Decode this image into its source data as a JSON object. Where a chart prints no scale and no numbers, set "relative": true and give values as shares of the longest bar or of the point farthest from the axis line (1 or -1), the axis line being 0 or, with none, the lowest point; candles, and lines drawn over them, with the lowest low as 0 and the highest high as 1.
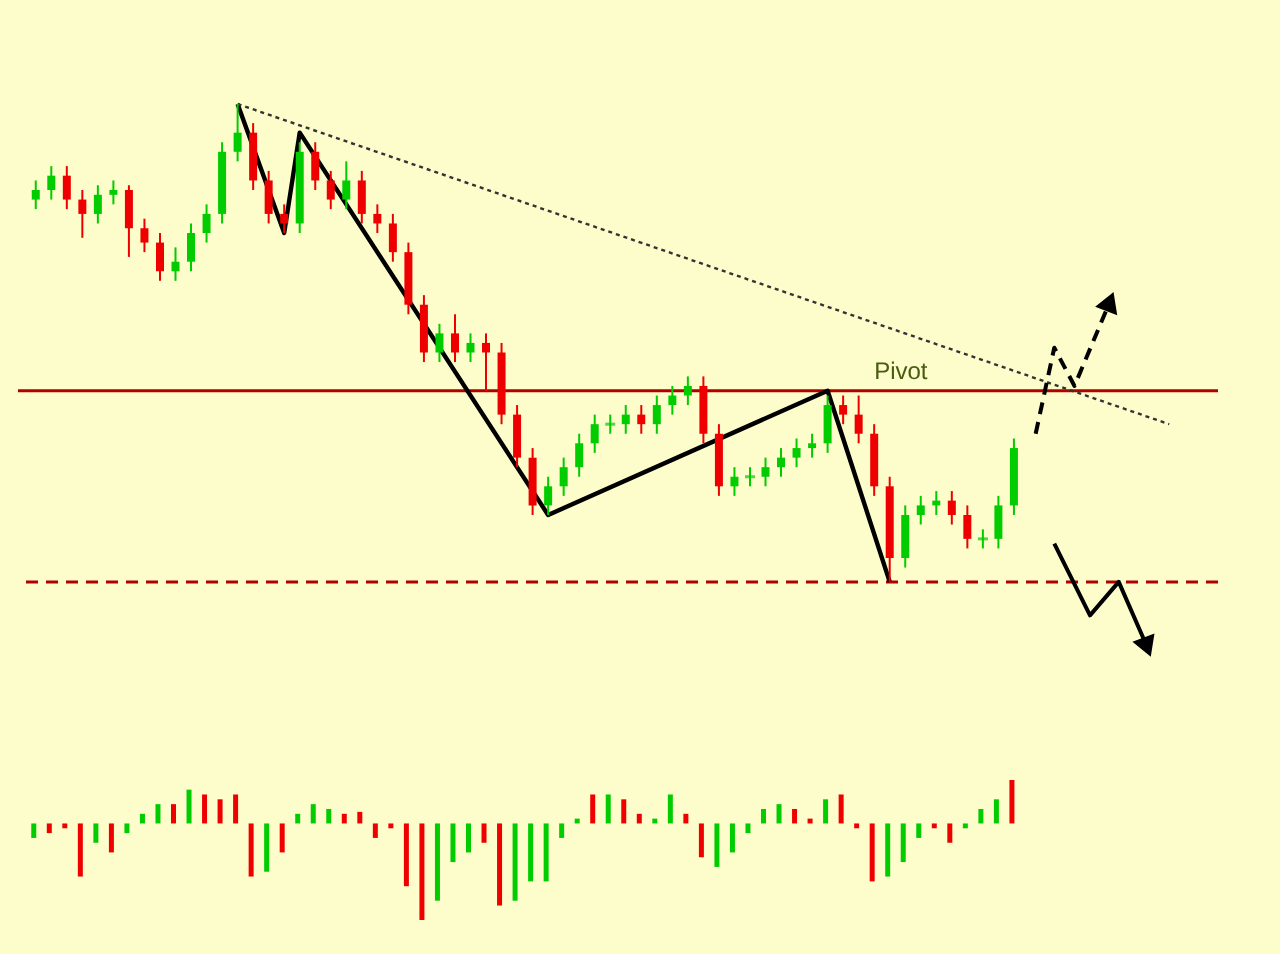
{
  "chart_data": [
    {
      "type": "candlestick",
      "relative": true,
      "categories": [
        null,
        null,
        null,
        null,
        null,
        null,
        null,
        null,
        null,
        null,
        null,
        null,
        null,
        null,
        null,
        null,
        null,
        null,
        null,
        null,
        null,
        null,
        null,
        null,
        null,
        null,
        null,
        null,
        null,
        null,
        null,
        null,
        null,
        null,
        null,
        null,
        null,
        null,
        null,
        null,
        null,
        null,
        null,
        null,
        null,
        null,
        null,
        null,
        null,
        null,
        null,
        null,
        null,
        null,
        null,
        null,
        null,
        null,
        null,
        null,
        null,
        null,
        null,
        null,
        null,
        null,
        null,
        null,
        null,
        null,
        null,
        null,
        null,
        null,
        null,
        null
      ],
      "ohlc": [
        [
          0.8,
          0.84,
          0.78,
          0.82
        ],
        [
          0.82,
          0.87,
          0.8,
          0.85
        ],
        [
          0.85,
          0.87,
          0.78,
          0.8
        ],
        [
          0.8,
          0.82,
          0.72,
          0.77
        ],
        [
          0.77,
          0.83,
          0.75,
          0.81
        ],
        [
          0.81,
          0.84,
          0.79,
          0.82
        ],
        [
          0.82,
          0.83,
          0.68,
          0.74
        ],
        [
          0.74,
          0.76,
          0.69,
          0.71
        ],
        [
          0.71,
          0.73,
          0.63,
          0.65
        ],
        [
          0.65,
          0.7,
          0.63,
          0.67
        ],
        [
          0.67,
          0.75,
          0.65,
          0.73
        ],
        [
          0.73,
          0.79,
          0.71,
          0.77
        ],
        [
          0.77,
          0.92,
          0.75,
          0.9
        ],
        [
          0.9,
          1.0,
          0.88,
          0.94
        ],
        [
          0.94,
          0.96,
          0.82,
          0.84
        ],
        [
          0.84,
          0.86,
          0.75,
          0.77
        ],
        [
          0.77,
          0.79,
          0.73,
          0.75
        ],
        [
          0.75,
          0.92,
          0.73,
          0.9
        ],
        [
          0.9,
          0.92,
          0.82,
          0.84
        ],
        [
          0.84,
          0.86,
          0.78,
          0.8
        ],
        [
          0.8,
          0.88,
          0.78,
          0.84
        ],
        [
          0.84,
          0.86,
          0.75,
          0.77
        ],
        [
          0.77,
          0.79,
          0.73,
          0.75
        ],
        [
          0.75,
          0.77,
          0.67,
          0.69
        ],
        [
          0.69,
          0.71,
          0.56,
          0.58
        ],
        [
          0.58,
          0.6,
          0.46,
          0.48
        ],
        [
          0.48,
          0.54,
          0.46,
          0.52
        ],
        [
          0.52,
          0.56,
          0.46,
          0.48
        ],
        [
          0.48,
          0.52,
          0.46,
          0.5
        ],
        [
          0.5,
          0.52,
          0.4,
          0.48
        ],
        [
          0.48,
          0.5,
          0.33,
          0.35
        ],
        [
          0.35,
          0.37,
          0.24,
          0.26
        ],
        [
          0.26,
          0.28,
          0.14,
          0.16
        ],
        [
          0.16,
          0.22,
          0.14,
          0.2
        ],
        [
          0.2,
          0.26,
          0.18,
          0.24
        ],
        [
          0.24,
          0.31,
          0.22,
          0.29
        ],
        [
          0.29,
          0.35,
          0.27,
          0.33
        ],
        [
          0.33,
          0.35,
          0.31,
          0.33
        ],
        [
          0.33,
          0.37,
          0.31,
          0.35
        ],
        [
          0.35,
          0.37,
          0.31,
          0.33
        ],
        [
          0.33,
          0.39,
          0.31,
          0.37
        ],
        [
          0.37,
          0.41,
          0.35,
          0.39
        ],
        [
          0.39,
          0.43,
          0.37,
          0.41
        ],
        [
          0.41,
          0.43,
          0.29,
          0.31
        ],
        [
          0.31,
          0.33,
          0.18,
          0.2
        ],
        [
          0.2,
          0.24,
          0.18,
          0.22
        ],
        [
          0.22,
          0.24,
          0.2,
          0.22
        ],
        [
          0.22,
          0.26,
          0.2,
          0.24
        ],
        [
          0.24,
          0.28,
          0.22,
          0.26
        ],
        [
          0.26,
          0.3,
          0.24,
          0.28
        ],
        [
          0.28,
          0.31,
          0.26,
          0.29
        ],
        [
          0.29,
          0.39,
          0.27,
          0.37
        ],
        [
          0.37,
          0.39,
          0.33,
          0.35
        ],
        [
          0.35,
          0.39,
          0.29,
          0.31
        ],
        [
          0.31,
          0.33,
          0.18,
          0.2
        ],
        [
          0.2,
          0.22,
          0.0,
          0.05
        ],
        [
          0.05,
          0.16,
          0.03,
          0.14
        ],
        [
          0.14,
          0.18,
          0.12,
          0.16
        ],
        [
          0.16,
          0.19,
          0.14,
          0.17
        ],
        [
          0.17,
          0.19,
          0.12,
          0.14
        ],
        [
          0.14,
          0.16,
          0.07,
          0.09
        ],
        [
          0.09,
          0.11,
          0.07,
          0.09
        ],
        [
          0.09,
          0.18,
          0.07,
          0.16
        ],
        [
          0.16,
          0.3,
          0.14,
          0.28
        ],
        null,
        null,
        null,
        null,
        null,
        null,
        null,
        null,
        null,
        null,
        null,
        null
      ],
      "colors": [
        "#00cc00",
        "#00cc00",
        "#ee0000",
        "#ee0000",
        "#00cc00",
        "#00cc00",
        "#ee0000",
        "#ee0000",
        "#ee0000",
        "#00cc00",
        "#00cc00",
        "#00cc00",
        "#00cc00",
        "#00cc00",
        "#ee0000",
        "#ee0000",
        "#ee0000",
        "#00cc00",
        "#ee0000",
        "#ee0000",
        "#00cc00",
        "#ee0000",
        "#ee0000",
        "#ee0000",
        "#ee0000",
        "#ee0000",
        "#00cc00",
        "#ee0000",
        "#00cc00",
        "#ee0000",
        "#ee0000",
        "#ee0000",
        "#ee0000",
        "#00cc00",
        "#00cc00",
        "#00cc00",
        "#00cc00",
        "#00cc00",
        "#00cc00",
        "#ee0000",
        "#00cc00",
        "#00cc00",
        "#00cc00",
        "#ee0000",
        "#ee0000",
        "#00cc00",
        "#00cc00",
        "#00cc00",
        "#00cc00",
        "#00cc00",
        "#00cc00",
        "#00cc00",
        "#ee0000",
        "#ee0000",
        "#ee0000",
        "#ee0000",
        "#00cc00",
        "#00cc00",
        "#00cc00",
        "#ee0000",
        "#ee0000",
        "#00cc00",
        "#00cc00",
        "#00cc00",
        null,
        null,
        null,
        null,
        null,
        null,
        null,
        null,
        null,
        null,
        null,
        null
      ],
      "series": [
        {
          "type": "line",
          "color": "#000000",
          "values": [
            null,
            null,
            null,
            null,
            null,
            null,
            null,
            null,
            null,
            null,
            null,
            null,
            null,
            1.0,
            null,
            null,
            0.73,
            0.94,
            null,
            null,
            null,
            null,
            null,
            null,
            null,
            null,
            null,
            null,
            null,
            null,
            null,
            null,
            null,
            0.14,
            null,
            null,
            null,
            null,
            null,
            null,
            null,
            null,
            null,
            null,
            null,
            null,
            null,
            null,
            null,
            null,
            null,
            0.4,
            null,
            null,
            null,
            0.0,
            null,
            null,
            null,
            null,
            null,
            null,
            null,
            null,
            null,
            null,
            null,
            null,
            null,
            null,
            null,
            null,
            null,
            null,
            null,
            null
          ]
        },
        {
          "type": "line",
          "color": "#333333",
          "line_style": "dotted",
          "values": [
            null,
            null,
            null,
            null,
            null,
            null,
            null,
            null,
            null,
            null,
            null,
            null,
            null,
            1.0,
            null,
            null,
            null,
            null,
            null,
            null,
            null,
            null,
            null,
            null,
            null,
            null,
            null,
            null,
            null,
            null,
            null,
            null,
            null,
            null,
            null,
            null,
            null,
            null,
            null,
            null,
            null,
            null,
            null,
            null,
            null,
            null,
            null,
            null,
            null,
            null,
            null,
            null,
            null,
            null,
            null,
            null,
            null,
            null,
            null,
            null,
            null,
            null,
            null,
            null,
            null,
            null,
            null,
            null,
            null,
            null,
            null,
            null,
            null,
            0.33,
            null,
            null
          ]
        }
      ],
      "ref_lines": [
        {
          "axis": "y",
          "value": 0.4,
          "label": "Pivot",
          "color": "#b00000"
        },
        {
          "axis": "y",
          "value": 0.0,
          "color": "#b00000",
          "line_style": "dashed"
        }
      ]
    },
    {
      "type": "bar",
      "relative": true,
      "categories": [
        null,
        null,
        null,
        null,
        null,
        null,
        null,
        null,
        null,
        null,
        null,
        null,
        null,
        null,
        null,
        null,
        null,
        null,
        null,
        null,
        null,
        null,
        null,
        null,
        null,
        null,
        null,
        null,
        null,
        null,
        null,
        null,
        null,
        null,
        null,
        null,
        null,
        null,
        null,
        null,
        null,
        null,
        null,
        null,
        null,
        null,
        null,
        null,
        null,
        null,
        null,
        null,
        null,
        null,
        null,
        null,
        null,
        null,
        null,
        null,
        null,
        null,
        null,
        null,
        null,
        null,
        null,
        null,
        null,
        null,
        null,
        null,
        null,
        null,
        null,
        null
      ],
      "values": [
        -0.15,
        -0.1,
        -0.05,
        -0.55,
        -0.2,
        -0.3,
        -0.1,
        0.1,
        0.2,
        0.2,
        0.35,
        0.3,
        0.25,
        0.3,
        -0.55,
        -0.5,
        -0.3,
        0.1,
        0.2,
        0.15,
        0.1,
        0.12,
        -0.15,
        -0.05,
        -0.65,
        -1.0,
        -0.8,
        -0.4,
        -0.3,
        -0.2,
        -0.85,
        -0.8,
        -0.6,
        -0.6,
        -0.15,
        0.05,
        0.3,
        0.3,
        0.25,
        0.1,
        0.05,
        0.3,
        0.1,
        -0.35,
        -0.45,
        -0.3,
        -0.1,
        0.15,
        0.2,
        0.15,
        0.05,
        0.25,
        0.3,
        -0.05,
        -0.6,
        -0.55,
        -0.4,
        -0.15,
        -0.05,
        -0.2,
        -0.05,
        0.15,
        0.25,
        0.45,
        null,
        null,
        null,
        null,
        null,
        null,
        null,
        null,
        null,
        null,
        null,
        null
      ],
      "colors": [
        "#00cc00",
        "#ee0000",
        "#ee0000",
        "#ee0000",
        "#00cc00",
        "#ee0000",
        "#00cc00",
        "#00cc00",
        "#00cc00",
        "#ee0000",
        "#00cc00",
        "#ee0000",
        "#ee0000",
        "#ee0000",
        "#ee0000",
        "#00cc00",
        "#ee0000",
        "#00cc00",
        "#00cc00",
        "#00cc00",
        "#ee0000",
        "#ee0000",
        "#ee0000",
        "#ee0000",
        "#ee0000",
        "#ee0000",
        "#00cc00",
        "#00cc00",
        "#00cc00",
        "#ee0000",
        "#ee0000",
        "#00cc00",
        "#00cc00",
        "#00cc00",
        "#00cc00",
        "#00cc00",
        "#ee0000",
        "#00cc00",
        "#ee0000",
        "#ee0000",
        "#00cc00",
        "#00cc00",
        "#ee0000",
        "#ee0000",
        "#00cc00",
        "#00cc00",
        "#00cc00",
        "#00cc00",
        "#00cc00",
        "#ee0000",
        "#ee0000",
        "#00cc00",
        "#ee0000",
        "#ee0000",
        "#ee0000",
        "#00cc00",
        "#00cc00",
        "#00cc00",
        "#ee0000",
        "#ee0000",
        "#00cc00",
        "#00cc00",
        "#00cc00",
        "#ee0000",
        null,
        null,
        null,
        null,
        null,
        null,
        null,
        null,
        null,
        null,
        null,
        null
      ]
    }
  ]
}
